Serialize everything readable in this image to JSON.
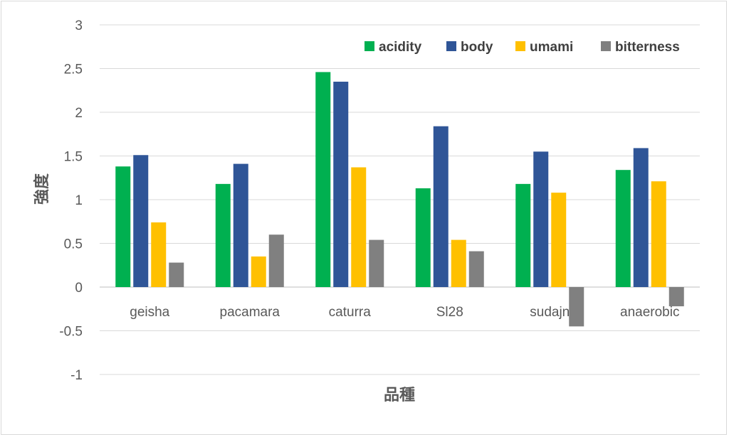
{
  "chart_data": {
    "type": "bar",
    "categories": [
      "geisha",
      "pacamara",
      "caturra",
      "Sl28",
      "sudajn",
      "anaerobic"
    ],
    "series": [
      {
        "name": "acidity",
        "color": "#00b050",
        "values": [
          1.38,
          1.18,
          2.46,
          1.13,
          1.18,
          1.34
        ]
      },
      {
        "name": "body",
        "color": "#2f5597",
        "values": [
          1.51,
          1.41,
          2.35,
          1.84,
          1.55,
          1.59
        ]
      },
      {
        "name": "umami",
        "color": "#ffc000",
        "values": [
          0.74,
          0.35,
          1.37,
          0.54,
          1.08,
          1.21
        ]
      },
      {
        "name": "bitterness",
        "color": "#808080",
        "values": [
          0.28,
          0.6,
          0.54,
          0.41,
          -0.45,
          -0.22
        ]
      }
    ],
    "xlabel": "品種",
    "ylabel": "強度",
    "ylim": [
      -1,
      3
    ],
    "yticks": [
      "3",
      "2.5",
      "2",
      "1.5",
      "1",
      "0.5",
      "0",
      "-0.5",
      "-1"
    ],
    "grid": true,
    "legend_position": "top-right"
  }
}
